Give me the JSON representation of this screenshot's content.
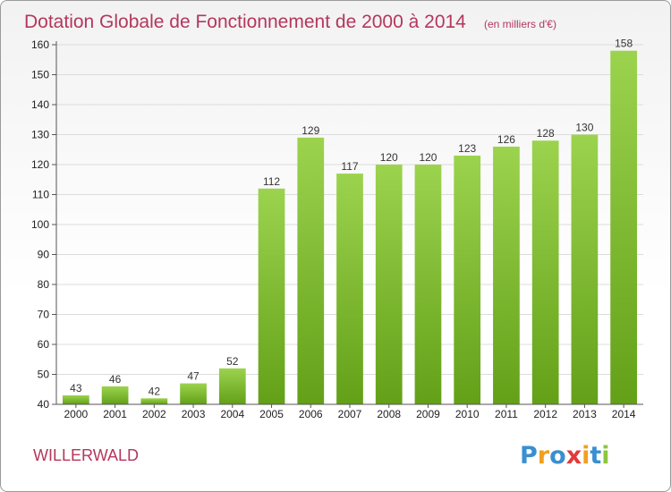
{
  "chart_data": {
    "type": "bar",
    "title": "Dotation Globale de Fonctionnement de 2000 à 2014",
    "subtitle": "(en milliers d'€)",
    "xlabel": "",
    "ylabel": "",
    "categories": [
      "2000",
      "2001",
      "2002",
      "2003",
      "2004",
      "2005",
      "2006",
      "2007",
      "2008",
      "2009",
      "2010",
      "2011",
      "2012",
      "2013",
      "2014"
    ],
    "values": [
      43,
      46,
      42,
      47,
      52,
      112,
      129,
      117,
      120,
      120,
      123,
      126,
      128,
      130,
      158
    ],
    "data_labels": [
      "43",
      "46",
      "42",
      "47",
      "52",
      "112",
      "129",
      "117",
      "120",
      "120",
      "123",
      "126",
      "128",
      "130",
      "158"
    ],
    "ylim": [
      40,
      160
    ],
    "yticks": [
      "40",
      "50",
      "60",
      "70",
      "80",
      "90",
      "100",
      "110",
      "120",
      "130",
      "140",
      "150",
      "160"
    ],
    "grid": true,
    "legend": "none"
  },
  "place_name": "WILLERWALD",
  "logo": {
    "text": "Proxiti",
    "letters": [
      "P",
      "r",
      "o",
      "x",
      "i",
      "t",
      "i"
    ],
    "letter_colors": [
      "#3a8fd0",
      "#f0a020",
      "#3a8fd0",
      "#e23a3a",
      "#f0a020",
      "#3a8fd0",
      "#8cc640"
    ]
  },
  "colors": {
    "bar_light": "#9cd34e",
    "bar_dark": "#63a018",
    "accent": "#b5365e",
    "grid": "#dcdcdc",
    "axis": "#555555"
  }
}
